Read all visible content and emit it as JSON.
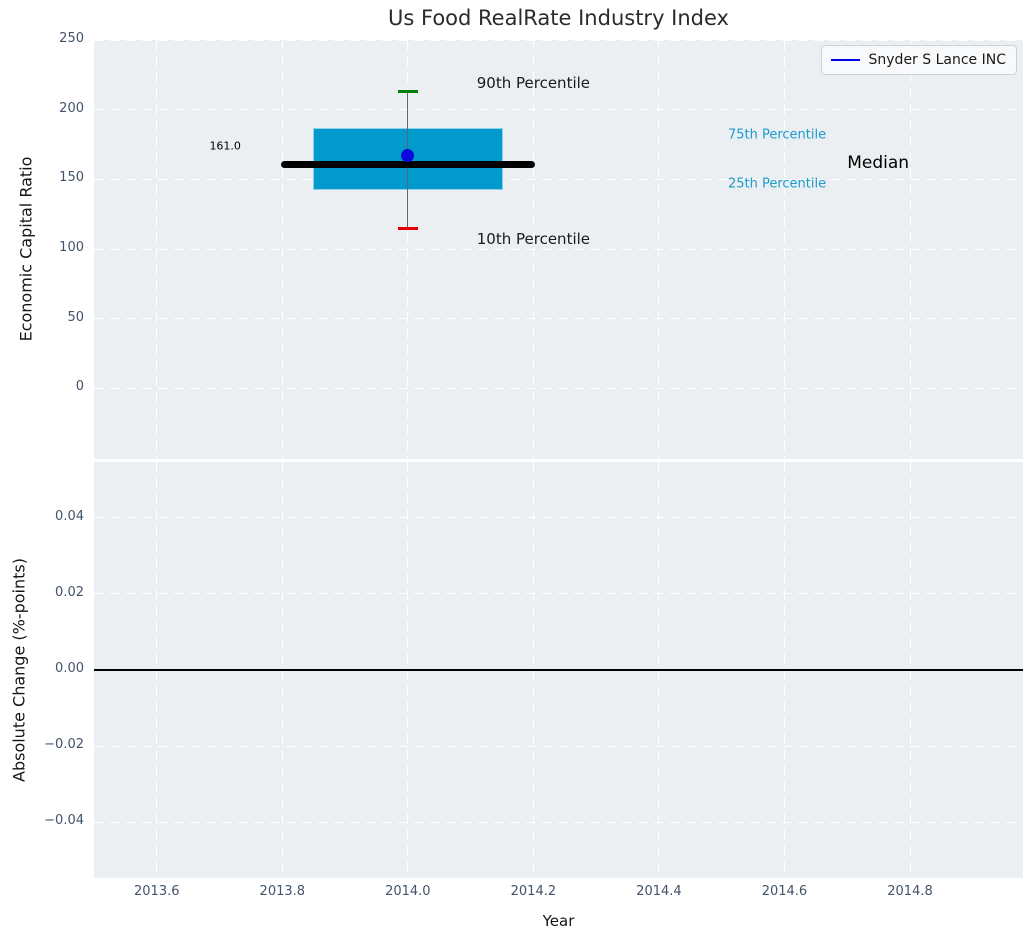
{
  "title": "Us Food RealRate Industry Index",
  "legend": {
    "label": "Snyder S Lance INC",
    "position": "upper right"
  },
  "colors": {
    "axes_bg": "#eceff1",
    "grid": "#ffffff",
    "box_fill": "#0299cc",
    "box_edge": "#8fd0e8",
    "median_line": "#000000",
    "whisker": "#666666",
    "cap_90th": "#008000",
    "cap_10th": "#e50000",
    "company_dot": "#0909dd",
    "legend_line": "#0000ee",
    "percentile_label": "#1b9bce",
    "annotation_text": "#1a1a1a",
    "tick_label": "#43536b",
    "zero_line": "#000000"
  },
  "chart_data": [
    {
      "type": "box",
      "title": "Us Food RealRate Industry Index",
      "ylabel": "Economic Capital Ratio",
      "xlim": [
        2013.5,
        2014.98
      ],
      "ylim": [
        -50.7,
        250
      ],
      "grid": true,
      "xticks": [
        2013.6,
        2013.8,
        2014.0,
        2014.2,
        2014.4,
        2014.6,
        2014.8
      ],
      "yticks": [
        {
          "v": 0,
          "label": "0"
        },
        {
          "v": 50,
          "label": "50"
        },
        {
          "v": 100,
          "label": "100"
        },
        {
          "v": 150,
          "label": "150"
        },
        {
          "v": 200,
          "label": "200"
        },
        {
          "v": 250,
          "label": "250"
        }
      ],
      "box": {
        "x": 2014.0,
        "p10": 115,
        "q1": 142,
        "median": 161,
        "q3": 187,
        "p90": 213,
        "company_name": "Snyder S Lance INC",
        "company_value": 167,
        "box_width": 0.302,
        "median_line_width": 0.405,
        "cap_width": 0.032
      },
      "annotations": [
        {
          "text": "90th Percentile",
          "x": 2014.2,
          "y": 219,
          "ha": "center",
          "size": 15,
          "color": "#1a1a1a"
        },
        {
          "text": "10th Percentile",
          "x": 2014.2,
          "y": 107,
          "ha": "center",
          "size": 15,
          "color": "#1a1a1a"
        },
        {
          "text": "161.0",
          "x": 2013.709,
          "y": 174,
          "ha": "center",
          "size": 11,
          "color": "#000000"
        },
        {
          "text": "75th Percentile",
          "x": 2014.51,
          "y": 182,
          "ha": "left",
          "size": 13,
          "color": "#1b9bce"
        },
        {
          "text": "25th Percentile",
          "x": 2014.51,
          "y": 147,
          "ha": "left",
          "size": 13,
          "color": "#1b9bce"
        },
        {
          "text": "Median",
          "x": 2014.7,
          "y": 161.5,
          "ha": "left",
          "size": 17,
          "color": "#000000"
        }
      ]
    },
    {
      "type": "line",
      "ylabel": "Absolute Change (%-points)",
      "xlabel": "Year",
      "xlim": [
        2013.5,
        2014.98
      ],
      "ylim": [
        -0.0547,
        0.0547
      ],
      "grid": true,
      "xticks": [
        {
          "v": 2013.6,
          "label": "2013.6"
        },
        {
          "v": 2013.8,
          "label": "2013.8"
        },
        {
          "v": 2014.0,
          "label": "2014.0"
        },
        {
          "v": 2014.2,
          "label": "2014.2"
        },
        {
          "v": 2014.4,
          "label": "2014.4"
        },
        {
          "v": 2014.6,
          "label": "2014.6"
        },
        {
          "v": 2014.8,
          "label": "2014.8"
        }
      ],
      "yticks": [
        {
          "v": 0.04,
          "label": "0.04"
        },
        {
          "v": 0.02,
          "label": "0.02"
        },
        {
          "v": 0.0,
          "label": "0.00"
        },
        {
          "v": -0.02,
          "label": "−0.02"
        },
        {
          "v": -0.04,
          "label": "−0.04"
        }
      ],
      "zero_line": 0.0,
      "series": []
    }
  ]
}
